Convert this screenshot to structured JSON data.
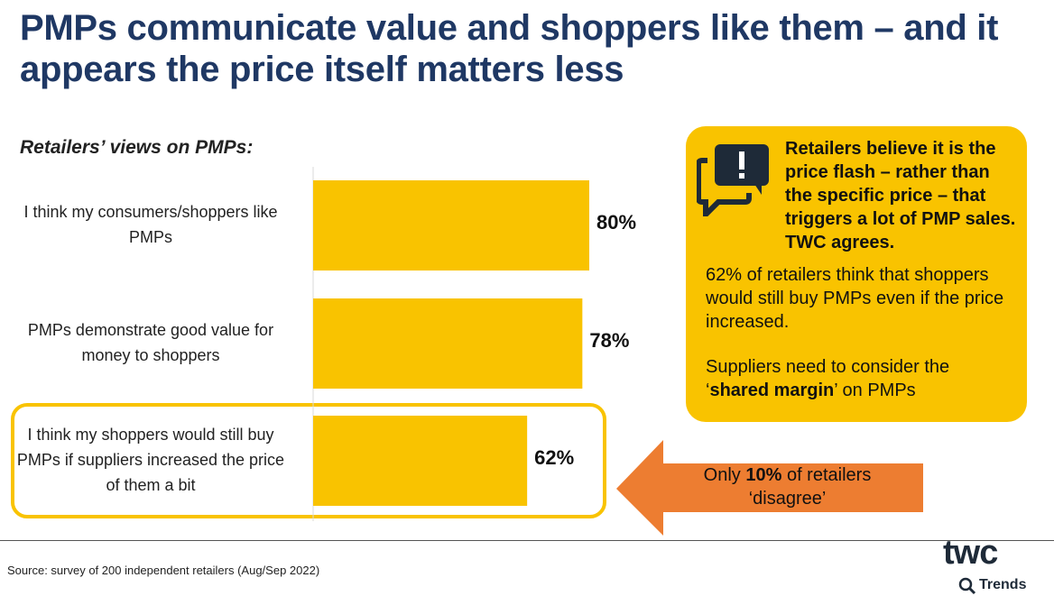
{
  "title": "PMPs communicate value and shoppers like them – and it appears the price itself matters less",
  "colors": {
    "title": "#1f3864",
    "bar": "#f9c300",
    "callout": "#f9c300",
    "arrow": "#ed7d31"
  },
  "chart_data": {
    "type": "bar",
    "orientation": "horizontal",
    "title": "Retailers’ views on PMPs:",
    "categories": [
      "I think my consumers/shoppers like PMPs",
      "PMPs demonstrate good value for money to shoppers",
      "I think my shoppers would still buy PMPs if suppliers increased the price of them a bit"
    ],
    "values": [
      80,
      78,
      62
    ],
    "data_labels": [
      "80%",
      "78%",
      "62%"
    ],
    "xlim": [
      0,
      100
    ],
    "highlighted_category": 2
  },
  "callout": {
    "icon": "speech-bubbles-exclamation-icon",
    "heading": "Retailers believe it is the price flash – rather than the specific price – that triggers a lot of PMP sales.   TWC agrees.",
    "para1": "62% of retailers think that shoppers would still buy PMPs even if the price increased.",
    "para2_pre": "Suppliers need to consider the ‘",
    "para2_bold": "shared margin",
    "para2_post": "’ on PMPs"
  },
  "arrow": {
    "pre": "Only ",
    "bold": "10%",
    "post": " of retailers ‘disagree’"
  },
  "source": "Source: survey of 200 independent retailers (Aug/Sep 2022)",
  "logo": {
    "main": "twc",
    "sub": "Trends"
  }
}
